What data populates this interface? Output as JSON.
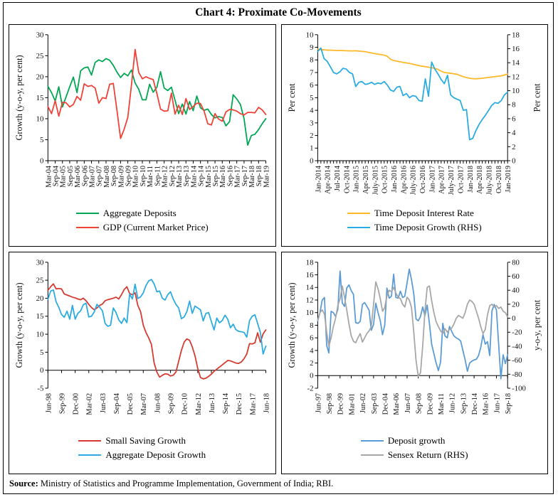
{
  "title": "Chart 4: Proximate Co-Movements",
  "source": {
    "label": "Source:",
    "text": " Ministry of Statistics and Programme Implementation, Government of India; RBI."
  },
  "chart_data": [
    {
      "type": "line",
      "position": "top-left",
      "legend_position": "bottom",
      "grid": false,
      "axes": {
        "left": {
          "label": "Growth (y-o-y, per cent)",
          "min": 0,
          "max": 30,
          "step": 5
        }
      },
      "x": {
        "labels": [
          "Mar-04",
          "Sep-04",
          "Mar-05",
          "Sep-05",
          "Mar-06",
          "Sep-06",
          "Mar-07",
          "Sep-07",
          "Mar-08",
          "Sep-08",
          "Mar-09",
          "Sep-09",
          "Mar-10",
          "Sep-10",
          "Mar-11",
          "Sep-11",
          "Mar-12",
          "Sep-12",
          "Mar-13",
          "Sep-13",
          "Mar-14",
          "Sep-14",
          "Mar-15",
          "Sep-15",
          "Mar-16",
          "Sep-16",
          "Mar-17",
          "Sep-17",
          "Mar-18",
          "Sep-18",
          "Mar-19"
        ],
        "points_per_label": 2,
        "tick_marks": "every-label",
        "frequency": "quarterly"
      },
      "series": [
        {
          "name": "Aggregate Deposits",
          "color": "#00A651",
          "axis": "left",
          "values": [
            17.7,
            16.2,
            14.2,
            17.6,
            12.8,
            15.2,
            17.6,
            19.9,
            16.2,
            21.4,
            22.1,
            22.3,
            20.4,
            23.4,
            24.0,
            23.6,
            24.3,
            23.9,
            22.7,
            21.1,
            19.8,
            20.8,
            20.2,
            21.6,
            18.5,
            17.0,
            14.5,
            14.5,
            18.2,
            16.3,
            17.5,
            21.2,
            17.3,
            16.7,
            17.5,
            14.4,
            11.2,
            13.5,
            11.1,
            14.1,
            11.9,
            15.4,
            12.6,
            12.0,
            12.3,
            11.0,
            10.2,
            10.5,
            10.3,
            8.3,
            9.3,
            15.7,
            14.7,
            13.4,
            10.0,
            3.7,
            6.0,
            6.3,
            7.4,
            8.8,
            10.0
          ]
        },
        {
          "name": "GDP (Current Market Price)",
          "color": "#EF4136",
          "axis": "left",
          "values": [
            12.9,
            11.2,
            14.3,
            10.6,
            13.9,
            13.8,
            12.8,
            13.4,
            15.3,
            14.4,
            18.3,
            17.7,
            17.9,
            17.3,
            13.7,
            15.0,
            14.8,
            18.2,
            18.4,
            12.0,
            5.3,
            7.5,
            10.3,
            18.0,
            26.5,
            21.0,
            19.5,
            20.0,
            19.6,
            19.3,
            16.0,
            12.3,
            11.8,
            11.9,
            16.1,
            11.1,
            13.2,
            11.0,
            14.8,
            12.2,
            12.9,
            13.7,
            13.6,
            11.8,
            8.8,
            8.5,
            11.2,
            9.9,
            9.4,
            11.6,
            12.2,
            12.1,
            11.8,
            11.2,
            10.9,
            11.5,
            11.5,
            11.4,
            12.7,
            12.1,
            11.0
          ]
        }
      ]
    },
    {
      "type": "line",
      "position": "top-right",
      "legend_position": "bottom",
      "grid": false,
      "axes": {
        "left": {
          "label": "Per cent",
          "min": 0,
          "max": 10,
          "step": 1
        },
        "right": {
          "label": "Per cent",
          "min": 0,
          "max": 18,
          "step": 2
        }
      },
      "x": {
        "labels": [
          "Jan-2014",
          "Apr-2014",
          "Jul-2014",
          "Oct-2014",
          "Jan-2015",
          "Apr-2015",
          "July-2015",
          "Oct-2015",
          "Jan-2016",
          "Apr-2016",
          "July-2016",
          "Oct-2016",
          "Jan-2017",
          "Apr-2017",
          "July-2017",
          "Oct-2017",
          "Jan-2018",
          "Apr-2018",
          "July-2018",
          "Oct-2018",
          "Jan-2019"
        ],
        "points_per_label": 3,
        "tick_marks": "every-point",
        "frequency": "monthly"
      },
      "series": [
        {
          "name": "Time Deposit Interest Rate",
          "color": "#FDB827",
          "axis": "left",
          "values": [
            8.85,
            8.82,
            8.8,
            8.78,
            8.77,
            8.76,
            8.75,
            8.75,
            8.74,
            8.73,
            8.72,
            8.71,
            8.73,
            8.7,
            8.68,
            8.65,
            8.6,
            8.55,
            8.5,
            8.46,
            8.42,
            8.38,
            8.28,
            8.05,
            7.95,
            7.9,
            7.85,
            7.8,
            7.76,
            7.72,
            7.66,
            7.6,
            7.55,
            7.5,
            7.46,
            7.42,
            7.38,
            7.33,
            7.25,
            7.1,
            7.0,
            6.97,
            6.94,
            6.9,
            6.86,
            6.76,
            6.66,
            6.6,
            6.55,
            6.51,
            6.5,
            6.52,
            6.55,
            6.58,
            6.61,
            6.64,
            6.67,
            6.7,
            6.74,
            6.8,
            6.88
          ]
        },
        {
          "name": "Time Deposit Growth (RHS)",
          "color": "#29ABE2",
          "axis": "right",
          "values": [
            15.6,
            16.1,
            14.6,
            14.2,
            13.4,
            12.6,
            12.4,
            12.7,
            13.2,
            13.1,
            12.6,
            12.4,
            10.6,
            11.2,
            11.3,
            10.9,
            11.0,
            11.2,
            10.9,
            11.1,
            11.0,
            11.3,
            10.8,
            10.1,
            9.9,
            10.5,
            10.6,
            9.3,
            9.6,
            9.0,
            9.3,
            9.2,
            8.6,
            8.5,
            11.7,
            9.2,
            14.1,
            13.1,
            12.4,
            11.6,
            11.0,
            12.2,
            9.4,
            9.0,
            8.8,
            8.6,
            7.2,
            7.3,
            3.0,
            3.2,
            4.3,
            5.2,
            5.9,
            6.5,
            7.2,
            7.9,
            8.3,
            8.2,
            8.6,
            9.4,
            9.8
          ]
        }
      ]
    },
    {
      "type": "line",
      "position": "bottom-left",
      "legend_position": "bottom",
      "grid": false,
      "axes": {
        "left": {
          "label": "Growth (y-o-y, per cent)",
          "min": -5,
          "max": 30,
          "step": 5
        }
      },
      "x": {
        "labels": [
          "Jun-98",
          "Sep-99",
          "Dec-00",
          "Mar-02",
          "Jun-03",
          "Sep-04",
          "Dec-05",
          "Mar-07",
          "Jun-08",
          "Sep-09",
          "Dec-10",
          "Mar-12",
          "Jun-13",
          "Sep-14",
          "Dec-15",
          "Mar-17",
          "Jun-18"
        ],
        "points_per_label": 5,
        "tick_marks": "every-label",
        "frequency": "quarterly"
      },
      "series": [
        {
          "name": "Small Saving Growth",
          "color": "#D6392F",
          "axis": "left",
          "values": [
            22.2,
            23.2,
            24.0,
            22.6,
            22.7,
            22.6,
            21.2,
            20.9,
            20.6,
            20.3,
            20.1,
            19.8,
            19.6,
            20.0,
            19.3,
            18.3,
            17.4,
            16.8,
            17.3,
            18.0,
            18.4,
            19.3,
            19.6,
            19.8,
            20.0,
            20.3,
            19.8,
            21.0,
            22.4,
            23.2,
            21.3,
            21.0,
            21.5,
            18.0,
            16.3,
            12.5,
            10.5,
            9.0,
            7.2,
            2.0,
            -0.5,
            -1.9,
            -1.4,
            -1.0,
            -1.1,
            -1.6,
            -1.4,
            -0.5,
            2.5,
            5.5,
            7.8,
            8.7,
            8.3,
            6.5,
            4.0,
            0.5,
            -2.0,
            -2.4,
            -2.2,
            -1.7,
            -1.1,
            -0.3,
            0.3,
            0.9,
            1.5,
            2.1,
            2.7,
            2.6,
            2.3,
            2.0,
            1.9,
            2.3,
            3.2,
            4.5,
            7.4,
            7.3,
            7.6,
            10.4,
            7.8,
            10.1,
            11.2
          ]
        },
        {
          "name": "Aggregate Deposit Growth",
          "color": "#29ABE2",
          "axis": "left",
          "values": [
            19.7,
            22.0,
            22.3,
            19.0,
            17.5,
            15.5,
            14.7,
            16.4,
            14.2,
            18.0,
            14.2,
            15.8,
            16.5,
            18.2,
            18.6,
            14.8,
            15.0,
            16.2,
            18.3,
            17.5,
            16.5,
            13.0,
            12.2,
            12.5,
            17.3,
            16.0,
            14.0,
            13.0,
            14.5,
            13.2,
            21.2,
            19.8,
            23.9,
            19.9,
            20.4,
            21.5,
            23.5,
            24.8,
            25.2,
            24.0,
            21.8,
            22.0,
            20.0,
            19.5,
            21.0,
            21.8,
            19.8,
            18.3,
            17.3,
            14.3,
            14.8,
            16.3,
            19.2,
            15.8,
            17.8,
            17.3,
            16.8,
            13.7,
            15.8,
            16.0,
            13.5,
            11.2,
            14.5,
            13.2,
            13.8,
            15.3,
            14.2,
            11.8,
            12.8,
            11.3,
            10.8,
            10.7,
            10.5,
            9.2,
            13.8,
            15.0,
            15.4,
            13.0,
            10.5,
            4.5,
            6.7
          ]
        }
      ]
    },
    {
      "type": "line",
      "position": "bottom-right",
      "legend_position": "bottom",
      "grid": false,
      "axes": {
        "left": {
          "label": "Growth (y-o-y, per cent)",
          "min": -2,
          "max": 18,
          "step": 2
        },
        "right": {
          "label": "y-o-y, per cent",
          "min": -100,
          "max": 80,
          "step": 20
        }
      },
      "x": {
        "labels": [
          "Jun-97",
          "Sep-98",
          "Dec-99",
          "Mar-01",
          "Jun-02",
          "Sep-03",
          "Dec-04",
          "Mar-06",
          "Jun-07",
          "Sep-08",
          "Dec-09",
          "Mar-11",
          "Jun-12",
          "Sep-13",
          "Dec-14",
          "Mar-16",
          "Jun-17",
          "Sep-18"
        ],
        "points_per_label": 5,
        "tick_marks": "every-label",
        "frequency": "quarterly"
      },
      "series": [
        {
          "name": "Deposit growth",
          "color": "#5B9BD5",
          "axis": "left",
          "values": [
            8.7,
            10.0,
            12.0,
            12.4,
            4.8,
            3.6,
            10.2,
            10.0,
            9.4,
            10.5,
            16.6,
            11.5,
            11.0,
            13.9,
            14.4,
            13.5,
            12.9,
            8.4,
            8.3,
            8.6,
            11.3,
            11.6,
            11.0,
            10.4,
            7.2,
            8.1,
            11.5,
            10.0,
            8.7,
            6.5,
            8.0,
            13.9,
            12.3,
            12.6,
            16.1,
            12.4,
            12.3,
            13.4,
            12.4,
            12.6,
            14.7,
            16.9,
            15.2,
            13.0,
            9.0,
            8.7,
            9.4,
            10.9,
            9.5,
            11.2,
            8.3,
            5.0,
            3.5,
            2.0,
            0.8,
            2.2,
            8.3,
            6.3,
            6.0,
            7.8,
            7.0,
            6.3,
            6.0,
            5.8,
            5.5,
            4.0,
            2.5,
            0.7,
            2.0,
            2.3,
            2.5,
            2.6,
            3.2,
            4.5,
            6.5,
            5.0,
            5.4,
            3.2,
            10.3,
            11.3,
            10.4,
            5.0,
            -0.5,
            3.3,
            1.9,
            3.3
          ]
        },
        {
          "name": "Sensex Return (RHS)",
          "color": "#A6A6A6",
          "axis": "right",
          "values": [
            -3,
            8,
            12,
            6,
            -20,
            -40,
            -28,
            -12,
            0,
            18,
            28,
            46,
            30,
            12,
            -8,
            -25,
            -33,
            -35,
            -28,
            -22,
            -34,
            -28,
            -22,
            -18,
            -12,
            20,
            52,
            42,
            28,
            10,
            15,
            32,
            40,
            38,
            44,
            36,
            30,
            28,
            20,
            16,
            30,
            26,
            15,
            -20,
            -60,
            -83,
            -78,
            -40,
            10,
            44,
            46,
            25,
            8,
            -5,
            -12,
            -18,
            -22,
            -15,
            -20,
            -16,
            -14,
            -8,
            0,
            4,
            2,
            0,
            8,
            20,
            26,
            24,
            20,
            10,
            0,
            -12,
            -22,
            -16,
            5,
            18,
            20,
            16,
            18,
            14,
            16,
            10,
            8,
            2
          ]
        }
      ]
    }
  ]
}
